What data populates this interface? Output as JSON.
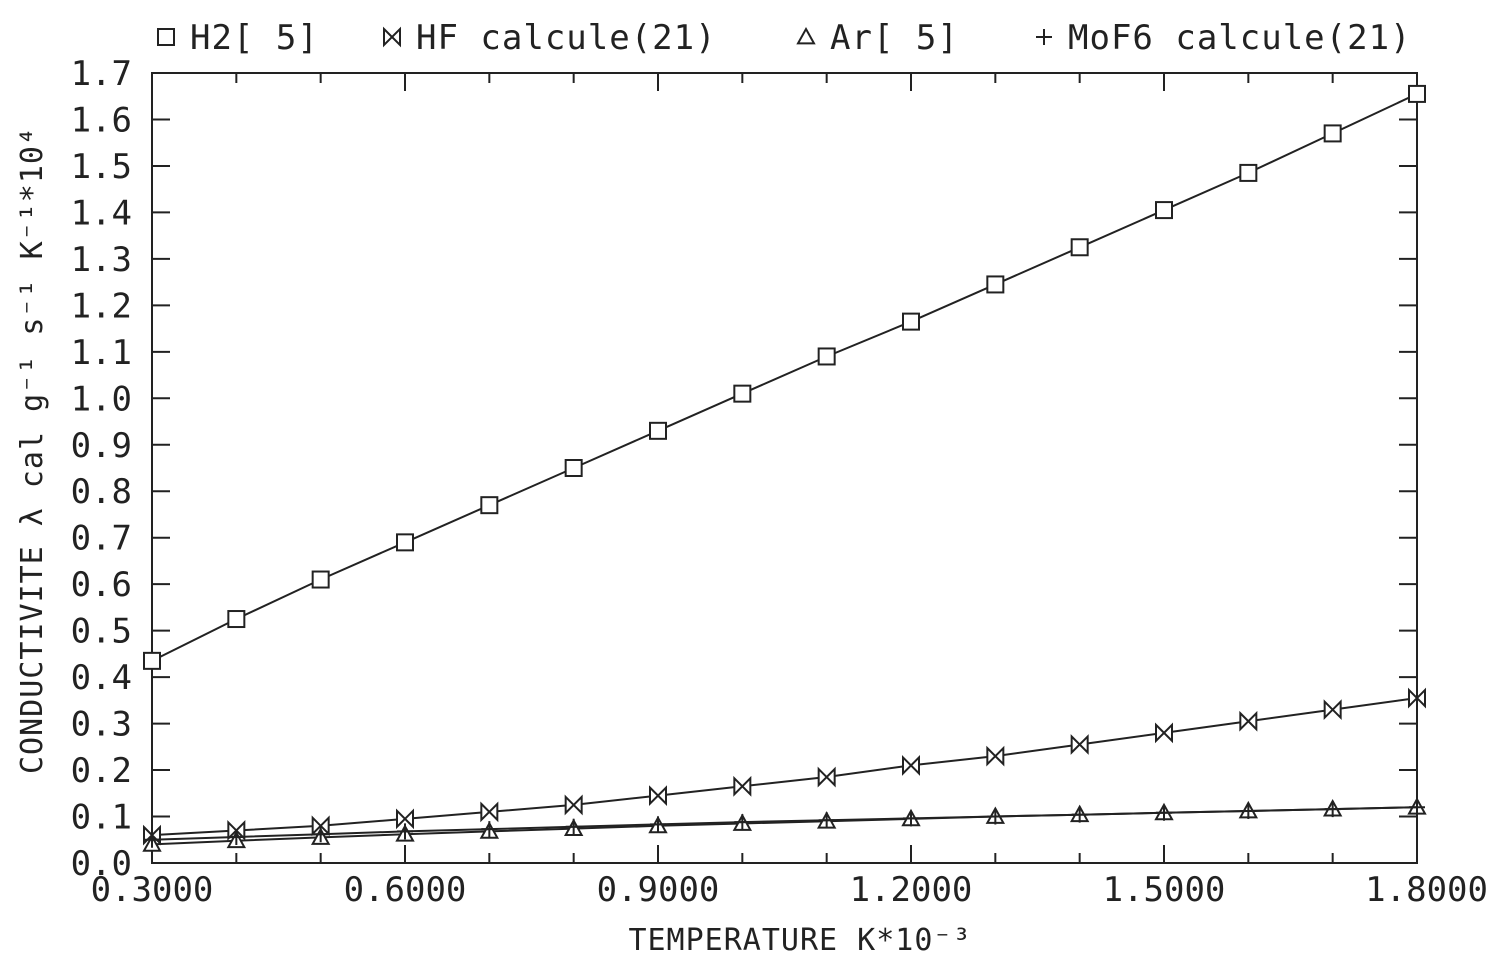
{
  "chart_data": {
    "type": "line",
    "title": "",
    "xlabel": "TEMPERATURE K*10⁻³",
    "ylabel": "CONDUCTIVITE λ cal g⁻¹ s⁻¹ K⁻¹*10⁴",
    "xlim": [
      0.3,
      1.8
    ],
    "ylim": [
      0.0,
      1.7
    ],
    "x_ticks": [
      "0.3000",
      "0.6000",
      "0.9000",
      "1.2000",
      "1.5000",
      "1.8000"
    ],
    "y_ticks": [
      "0.0",
      "0.1",
      "0.2",
      "0.3",
      "0.4",
      "0.5",
      "0.6",
      "0.7",
      "0.8",
      "0.9",
      "1.0",
      "1.1",
      "1.2",
      "1.3",
      "1.4",
      "1.5",
      "1.6",
      "1.7"
    ],
    "legend_position": "top",
    "series": [
      {
        "name": "H2[ 5]",
        "marker": "square",
        "x": [
          0.3,
          0.4,
          0.5,
          0.6,
          0.7,
          0.8,
          0.9,
          1.0,
          1.1,
          1.2,
          1.3,
          1.4,
          1.5,
          1.6,
          1.7,
          1.8
        ],
        "values": [
          0.435,
          0.525,
          0.61,
          0.69,
          0.77,
          0.85,
          0.93,
          1.01,
          1.09,
          1.165,
          1.245,
          1.325,
          1.405,
          1.485,
          1.57,
          1.655
        ]
      },
      {
        "name": "HF calcule(21)",
        "marker": "bowtie",
        "x": [
          0.3,
          0.4,
          0.5,
          0.6,
          0.7,
          0.8,
          0.9,
          1.0,
          1.1,
          1.2,
          1.3,
          1.4,
          1.5,
          1.6,
          1.7,
          1.8
        ],
        "values": [
          0.06,
          0.07,
          0.08,
          0.095,
          0.11,
          0.125,
          0.145,
          0.165,
          0.185,
          0.21,
          0.23,
          0.255,
          0.28,
          0.305,
          0.33,
          0.355
        ]
      },
      {
        "name": "Ar[ 5]",
        "marker": "triangle",
        "x": [
          0.3,
          0.4,
          0.5,
          0.6,
          0.7,
          0.8,
          0.9,
          1.0,
          1.1,
          1.2,
          1.3,
          1.4,
          1.5,
          1.6,
          1.7,
          1.8
        ],
        "values": [
          0.04,
          0.048,
          0.055,
          0.062,
          0.068,
          0.074,
          0.08,
          0.085,
          0.09,
          0.095,
          0.1,
          0.104,
          0.108,
          0.112,
          0.116,
          0.12
        ]
      },
      {
        "name": "MoF6 calcule(21)",
        "marker": "plus",
        "x": [
          0.3,
          0.4,
          0.5,
          0.6,
          0.7,
          0.8,
          0.9,
          1.0,
          1.1,
          1.2,
          1.3,
          1.4,
          1.5,
          1.6,
          1.7,
          1.8
        ],
        "values": [
          0.05,
          0.056,
          0.062,
          0.068,
          0.073,
          0.078,
          0.083,
          0.088,
          0.092,
          0.096,
          0.1,
          0.104,
          0.108,
          0.112,
          0.116,
          0.12
        ]
      }
    ]
  }
}
